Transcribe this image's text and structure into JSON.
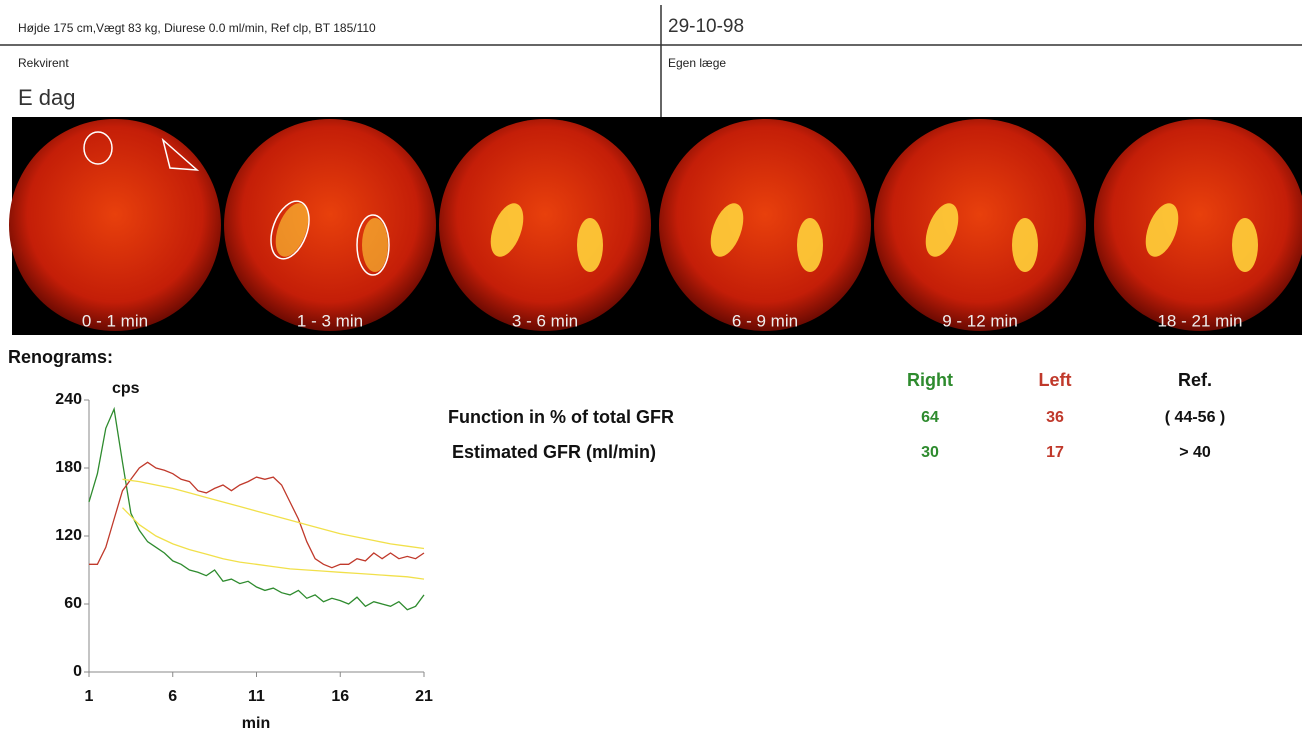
{
  "header": {
    "patient": "Højde 175 cm,Vægt 83 kg, Diurese 0.0 ml/min, Ref clp, BT 185/110",
    "date": "29-10-98",
    "requester_label": "Rekvirent",
    "requester": "E dag",
    "doctor_label": "Egen læge"
  },
  "images": [
    {
      "label": "0 - 1 min"
    },
    {
      "label": "1 - 3 min"
    },
    {
      "label": "3 - 6 min"
    },
    {
      "label": "6 - 9 min"
    },
    {
      "label": "9 - 12 min"
    },
    {
      "label": "18 - 21 min"
    }
  ],
  "chart_data": {
    "type": "line",
    "title": "Renograms:",
    "ylabel": "cps",
    "xlabel": "min",
    "xlim": [
      1,
      21
    ],
    "ylim": [
      0,
      240
    ],
    "xticks": [
      1,
      6,
      11,
      16,
      21
    ],
    "yticks": [
      0,
      60,
      120,
      180,
      240
    ],
    "x": [
      1,
      1.5,
      2,
      2.5,
      3,
      3.5,
      4,
      4.5,
      5,
      5.5,
      6,
      6.5,
      7,
      7.5,
      8,
      8.5,
      9,
      9.5,
      10,
      10.5,
      11,
      11.5,
      12,
      12.5,
      13,
      13.5,
      14,
      14.5,
      15,
      15.5,
      16,
      16.5,
      17,
      17.5,
      18,
      18.5,
      19,
      19.5,
      20,
      20.5,
      21
    ],
    "series": [
      {
        "color": "#2e8b2e",
        "values": [
          150,
          175,
          215,
          232,
          185,
          140,
          125,
          115,
          110,
          105,
          98,
          95,
          90,
          88,
          85,
          90,
          80,
          82,
          78,
          80,
          75,
          72,
          74,
          70,
          68,
          72,
          65,
          68,
          62,
          65,
          63,
          60,
          66,
          58,
          62,
          60,
          58,
          62,
          55,
          58,
          68
        ]
      },
      {
        "color": "#c0392b",
        "values": [
          95,
          95,
          110,
          135,
          160,
          170,
          180,
          185,
          180,
          178,
          175,
          170,
          168,
          160,
          158,
          162,
          165,
          160,
          165,
          168,
          172,
          170,
          172,
          165,
          150,
          135,
          115,
          100,
          95,
          92,
          95,
          95,
          100,
          98,
          105,
          100,
          105,
          100,
          102,
          100,
          105
        ]
      },
      {
        "color": "#f1e04a",
        "x": [
          3,
          4,
          5,
          6,
          7,
          8,
          9,
          10,
          11,
          12,
          13,
          14,
          15,
          16,
          17,
          18,
          19,
          20,
          21
        ],
        "values": [
          170,
          168,
          165,
          162,
          158,
          154,
          150,
          146,
          142,
          138,
          134,
          130,
          126,
          122,
          119,
          116,
          113,
          111,
          109
        ]
      },
      {
        "color": "#f1e04a",
        "x": [
          3,
          4,
          5,
          6,
          7,
          8,
          9,
          10,
          11,
          12,
          13,
          14,
          15,
          16,
          17,
          18,
          19,
          20,
          21
        ],
        "values": [
          145,
          130,
          120,
          113,
          108,
          104,
          100,
          97,
          95,
          93,
          91,
          90,
          89,
          88,
          87,
          86,
          85,
          84,
          82
        ]
      }
    ]
  },
  "table": {
    "columns": [
      "Right",
      "Left",
      "Ref."
    ],
    "rows": [
      [
        "Function in % of total GFR",
        64,
        36,
        "( 44-56 )"
      ],
      [
        "Estimated GFR (ml/min)",
        30,
        17,
        "> 40"
      ]
    ]
  }
}
